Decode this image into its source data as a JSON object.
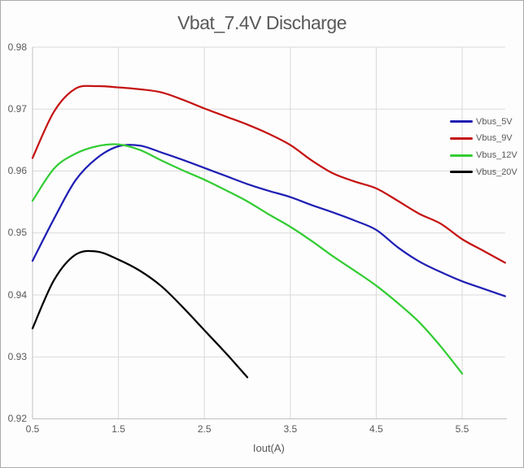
{
  "window": {
    "background": "#fdfdfd",
    "border_color": "#ababab"
  },
  "chart_data": {
    "type": "line",
    "title": "Vbat_7.4V Discharge",
    "xlabel": "Iout(A)",
    "ylabel": "",
    "xlim": [
      0.5,
      6.0
    ],
    "ylim": [
      0.92,
      0.98
    ],
    "grid": true,
    "legend_position": "right-inside",
    "x_ticks": [
      {
        "value": 0.5,
        "label": "0.5"
      },
      {
        "value": 1.5,
        "label": "1.5"
      },
      {
        "value": 2.5,
        "label": "2.5"
      },
      {
        "value": 3.5,
        "label": "3.5"
      },
      {
        "value": 4.5,
        "label": "4.5"
      },
      {
        "value": 5.5,
        "label": "5.5"
      }
    ],
    "y_ticks": [
      {
        "value": 0.92,
        "label": "0.92"
      },
      {
        "value": 0.93,
        "label": "0.93"
      },
      {
        "value": 0.94,
        "label": "0.94"
      },
      {
        "value": 0.95,
        "label": "0.95"
      },
      {
        "value": 0.96,
        "label": "0.96"
      },
      {
        "value": 0.97,
        "label": "0.97"
      },
      {
        "value": 0.98,
        "label": "0.98"
      }
    ],
    "series": [
      {
        "name": "Vbus_5V",
        "color": "#1f1fb4",
        "x": [
          0.5,
          0.75,
          1.0,
          1.25,
          1.5,
          1.75,
          2.0,
          2.25,
          2.5,
          2.75,
          3.0,
          3.25,
          3.5,
          3.75,
          4.0,
          4.25,
          4.5,
          4.75,
          5.0,
          5.25,
          5.5,
          5.75,
          6.0
        ],
        "y": [
          0.9455,
          0.9523,
          0.9585,
          0.9621,
          0.964,
          0.9641,
          0.963,
          0.9618,
          0.9605,
          0.9592,
          0.9579,
          0.9568,
          0.9558,
          0.9545,
          0.9533,
          0.952,
          0.9505,
          0.9477,
          0.9454,
          0.9437,
          0.9422,
          0.941,
          0.9398
        ]
      },
      {
        "name": "Vbus_9V",
        "color": "#c51212",
        "x": [
          0.5,
          0.75,
          1.0,
          1.25,
          1.5,
          1.75,
          2.0,
          2.25,
          2.5,
          2.75,
          3.0,
          3.25,
          3.5,
          3.75,
          4.0,
          4.25,
          4.5,
          4.75,
          5.0,
          5.25,
          5.5,
          5.75,
          6.0
        ],
        "y": [
          0.9621,
          0.9696,
          0.9733,
          0.9737,
          0.9735,
          0.9732,
          0.9727,
          0.9715,
          0.9701,
          0.9688,
          0.9675,
          0.966,
          0.9642,
          0.9617,
          0.9596,
          0.9583,
          0.9572,
          0.9552,
          0.9531,
          0.9515,
          0.949,
          0.9471,
          0.9452
        ]
      },
      {
        "name": "Vbus_12V",
        "color": "#33cc33",
        "x": [
          0.5,
          0.75,
          1.0,
          1.25,
          1.5,
          1.75,
          2.0,
          2.25,
          2.5,
          2.75,
          3.0,
          3.25,
          3.5,
          3.75,
          4.0,
          4.25,
          4.5,
          4.75,
          5.0,
          5.25,
          5.5
        ],
        "y": [
          0.9552,
          0.9604,
          0.9628,
          0.964,
          0.9643,
          0.9634,
          0.9617,
          0.9601,
          0.9586,
          0.9569,
          0.9551,
          0.953,
          0.951,
          0.9487,
          0.9462,
          0.9439,
          0.9415,
          0.9387,
          0.9356,
          0.9317,
          0.9273
        ]
      },
      {
        "name": "Vbus_20V",
        "color": "#000000",
        "x": [
          0.5,
          0.75,
          1.0,
          1.25,
          1.5,
          1.75,
          2.0,
          2.25,
          2.5,
          2.75,
          3.0
        ],
        "y": [
          0.9346,
          0.9424,
          0.9465,
          0.947,
          0.9457,
          0.9439,
          0.9414,
          0.938,
          0.9343,
          0.9306,
          0.9267
        ]
      }
    ],
    "style": {
      "gridline_color": "#d9d9d9",
      "axis_color": "#bfbfbf",
      "text_color": "#595959",
      "line_width": 2.25
    }
  }
}
